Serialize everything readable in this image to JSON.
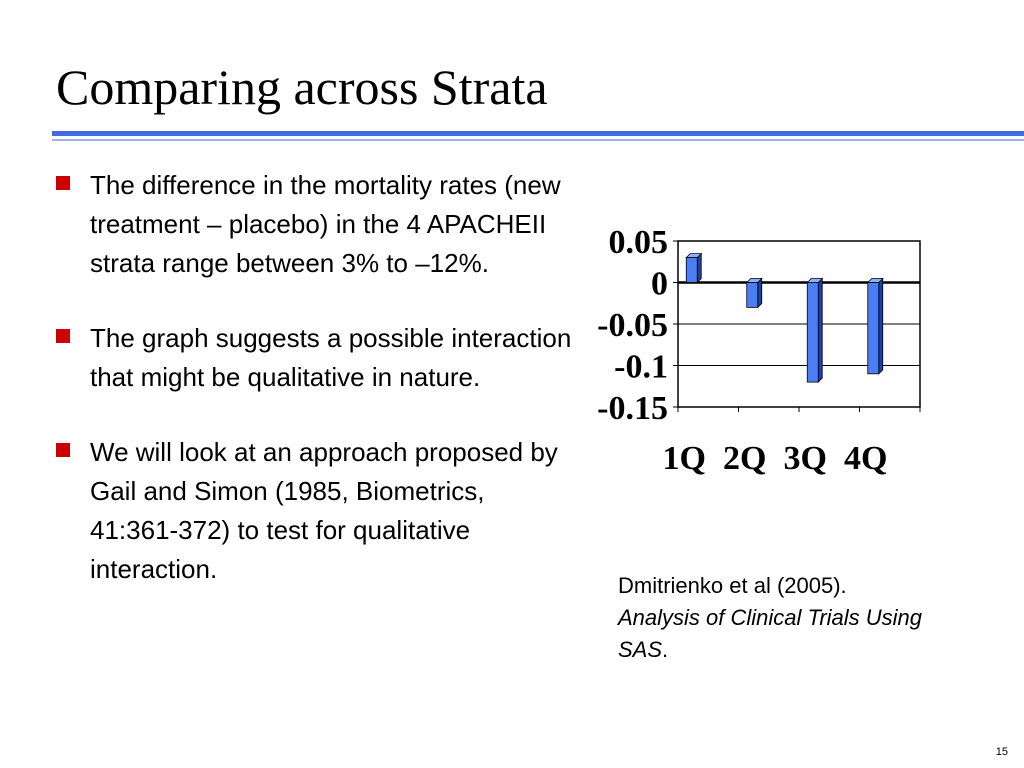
{
  "slide": {
    "title": "Comparing across Strata",
    "page_number": "15"
  },
  "bullets": [
    {
      "text": "The difference in the mortality rates (new treatment – placebo) in the 4 APACHEII strata range between 3% to –12%."
    },
    {
      "text": "The graph suggests a possible interaction that might be qualitative in nature."
    },
    {
      "text": "We will look at an approach proposed by Gail and Simon (1985, Biometrics, 41:361-372) to test for qualitative interaction."
    }
  ],
  "colors": {
    "title_rule": "#4169e1",
    "bullet_marker": "#cc0000",
    "bar_front": "#4a7ef5",
    "bar_side": "#1c3fa8",
    "bar_top": "#8fb0ff"
  },
  "citation": {
    "line1": "Dmitrienko et al (2005).",
    "book_title": "Analysis of Clinical Trials Using SAS",
    "end": "."
  },
  "chart_data": {
    "type": "bar",
    "categories": [
      "1Q",
      "2Q",
      "3Q",
      "4Q"
    ],
    "values": [
      0.03,
      -0.03,
      -0.12,
      -0.11
    ],
    "ylim": [
      -0.15,
      0.05
    ],
    "y_ticks": [
      0.05,
      0,
      -0.05,
      -0.1,
      -0.15
    ],
    "y_tick_labels": [
      "0.05",
      "0",
      "-0.05",
      "-0.1",
      "-0.15"
    ],
    "grid": true,
    "title": "",
    "xlabel": "",
    "ylabel": ""
  }
}
